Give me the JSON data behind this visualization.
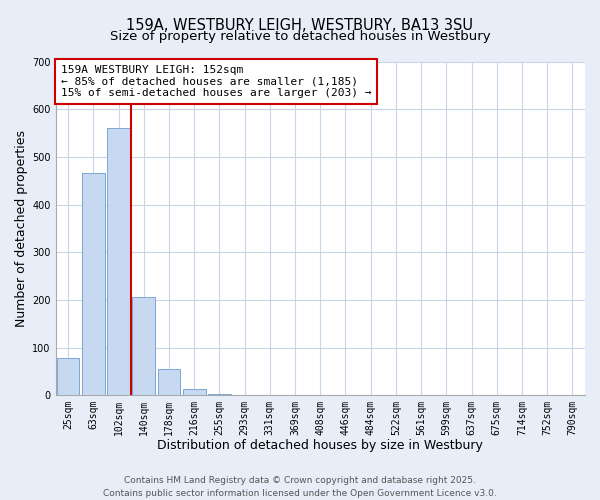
{
  "title": "159A, WESTBURY LEIGH, WESTBURY, BA13 3SU",
  "subtitle": "Size of property relative to detached houses in Westbury",
  "xlabel": "Distribution of detached houses by size in Westbury",
  "ylabel": "Number of detached properties",
  "bar_labels": [
    "25sqm",
    "63sqm",
    "102sqm",
    "140sqm",
    "178sqm",
    "216sqm",
    "255sqm",
    "293sqm",
    "331sqm",
    "369sqm",
    "408sqm",
    "446sqm",
    "484sqm",
    "522sqm",
    "561sqm",
    "599sqm",
    "637sqm",
    "675sqm",
    "714sqm",
    "752sqm",
    "790sqm"
  ],
  "bar_values": [
    78,
    467,
    560,
    207,
    55,
    14,
    3,
    0,
    0,
    0,
    0,
    0,
    0,
    0,
    0,
    0,
    0,
    0,
    0,
    0,
    0
  ],
  "bar_color": "#c6d9f1",
  "bar_edge_color": "#7ba7d1",
  "vline_color": "#cc0000",
  "ylim": [
    0,
    700
  ],
  "yticks": [
    0,
    100,
    200,
    300,
    400,
    500,
    600,
    700
  ],
  "annotation_title": "159A WESTBURY LEIGH: 152sqm",
  "annotation_line1": "← 85% of detached houses are smaller (1,185)",
  "annotation_line2": "15% of semi-detached houses are larger (203) →",
  "annotation_box_color": "#ffffff",
  "annotation_box_edge": "#cc0000",
  "footer1": "Contains HM Land Registry data © Crown copyright and database right 2025.",
  "footer2": "Contains public sector information licensed under the Open Government Licence v3.0.",
  "bg_color": "#e8eef8",
  "plot_bg_color": "#ffffff",
  "grid_color": "#c8d4e8",
  "title_fontsize": 10.5,
  "subtitle_fontsize": 9.5,
  "label_fontsize": 9,
  "tick_fontsize": 7,
  "annotation_fontsize": 8,
  "footer_fontsize": 6.5
}
